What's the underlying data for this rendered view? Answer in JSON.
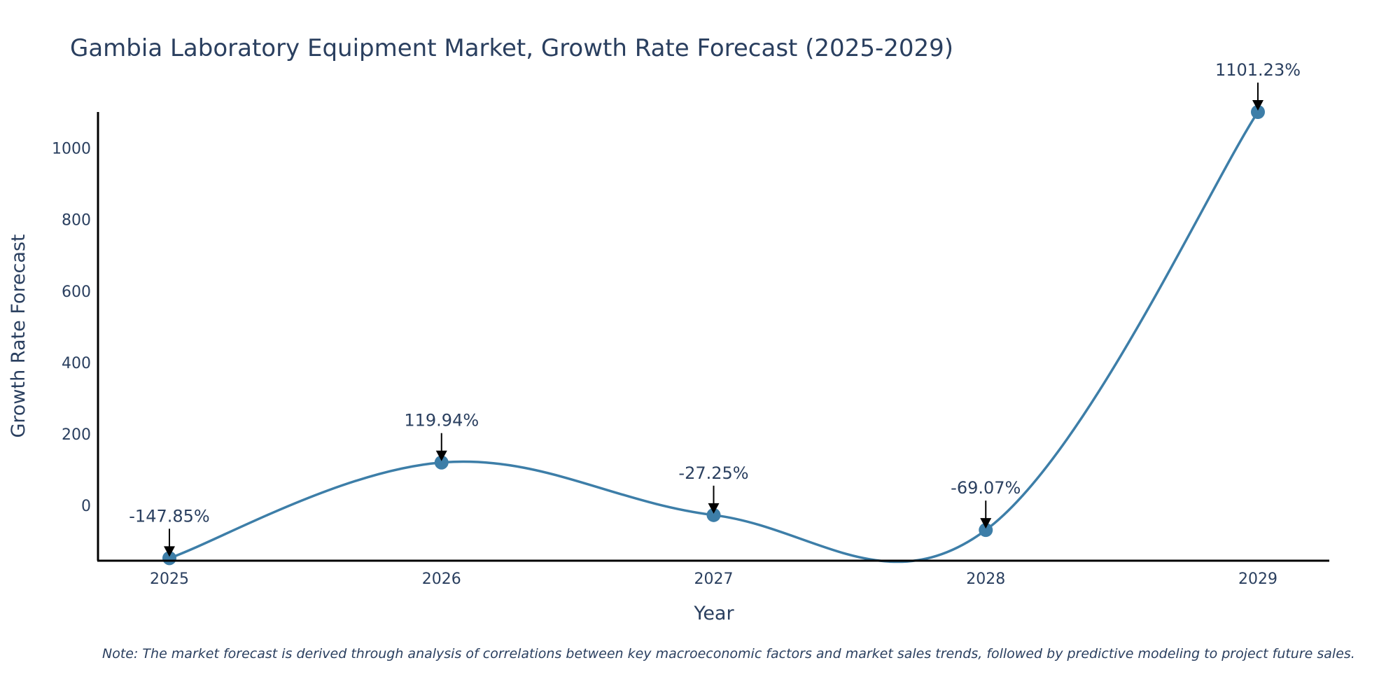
{
  "chart_data": {
    "type": "line",
    "title": "Gambia Laboratory Equipment Market, Growth Rate Forecast (2025-2029)",
    "xlabel": "Year",
    "ylabel": "Growth Rate Forecast",
    "categories": [
      "2025",
      "2026",
      "2027",
      "2028",
      "2029"
    ],
    "series": [
      {
        "name": "Growth Rate Forecast",
        "values": [
          -147.85,
          119.94,
          -27.25,
          -69.07,
          1101.23
        ]
      }
    ],
    "data_labels": [
      "-147.85%",
      "119.94%",
      "-27.25%",
      "-69.07%",
      "1101.23%"
    ],
    "ylim": [
      -155,
      1101.23
    ],
    "yticks": [
      0,
      200,
      400,
      600,
      800,
      1000
    ],
    "line_shape": "spline",
    "grid": false,
    "color": "#3d7ea8"
  },
  "note": "Note: The market forecast is derived through analysis of correlations between key macroeconomic factors and market sales trends, followed by predictive modeling to project future sales."
}
